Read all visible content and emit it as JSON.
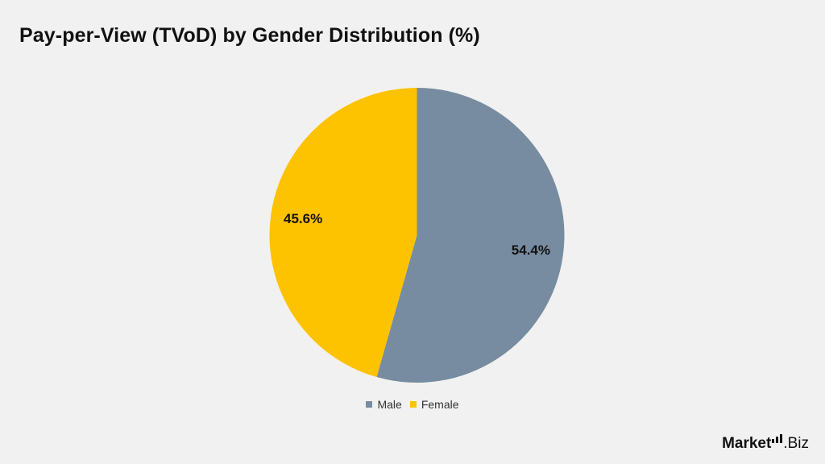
{
  "chart_data": {
    "type": "pie",
    "title": "Pay-per-View (TVoD) by Gender Distribution (%)",
    "slices": [
      {
        "label": "Male",
        "value": 54.4,
        "display": "54.4%",
        "color": "#778ca0"
      },
      {
        "label": "Female",
        "value": 45.6,
        "display": "45.6%",
        "color": "#fdc200"
      }
    ],
    "start_angle_deg": 0,
    "direction": "clockwise",
    "legend_position": "bottom"
  },
  "legend": {
    "items": [
      {
        "label": "Male",
        "color": "#778ca0"
      },
      {
        "label": "Female",
        "color": "#fdc200"
      }
    ]
  },
  "branding": {
    "logo_text_part1": "Market",
    "logo_text_part2": ".Biz"
  }
}
